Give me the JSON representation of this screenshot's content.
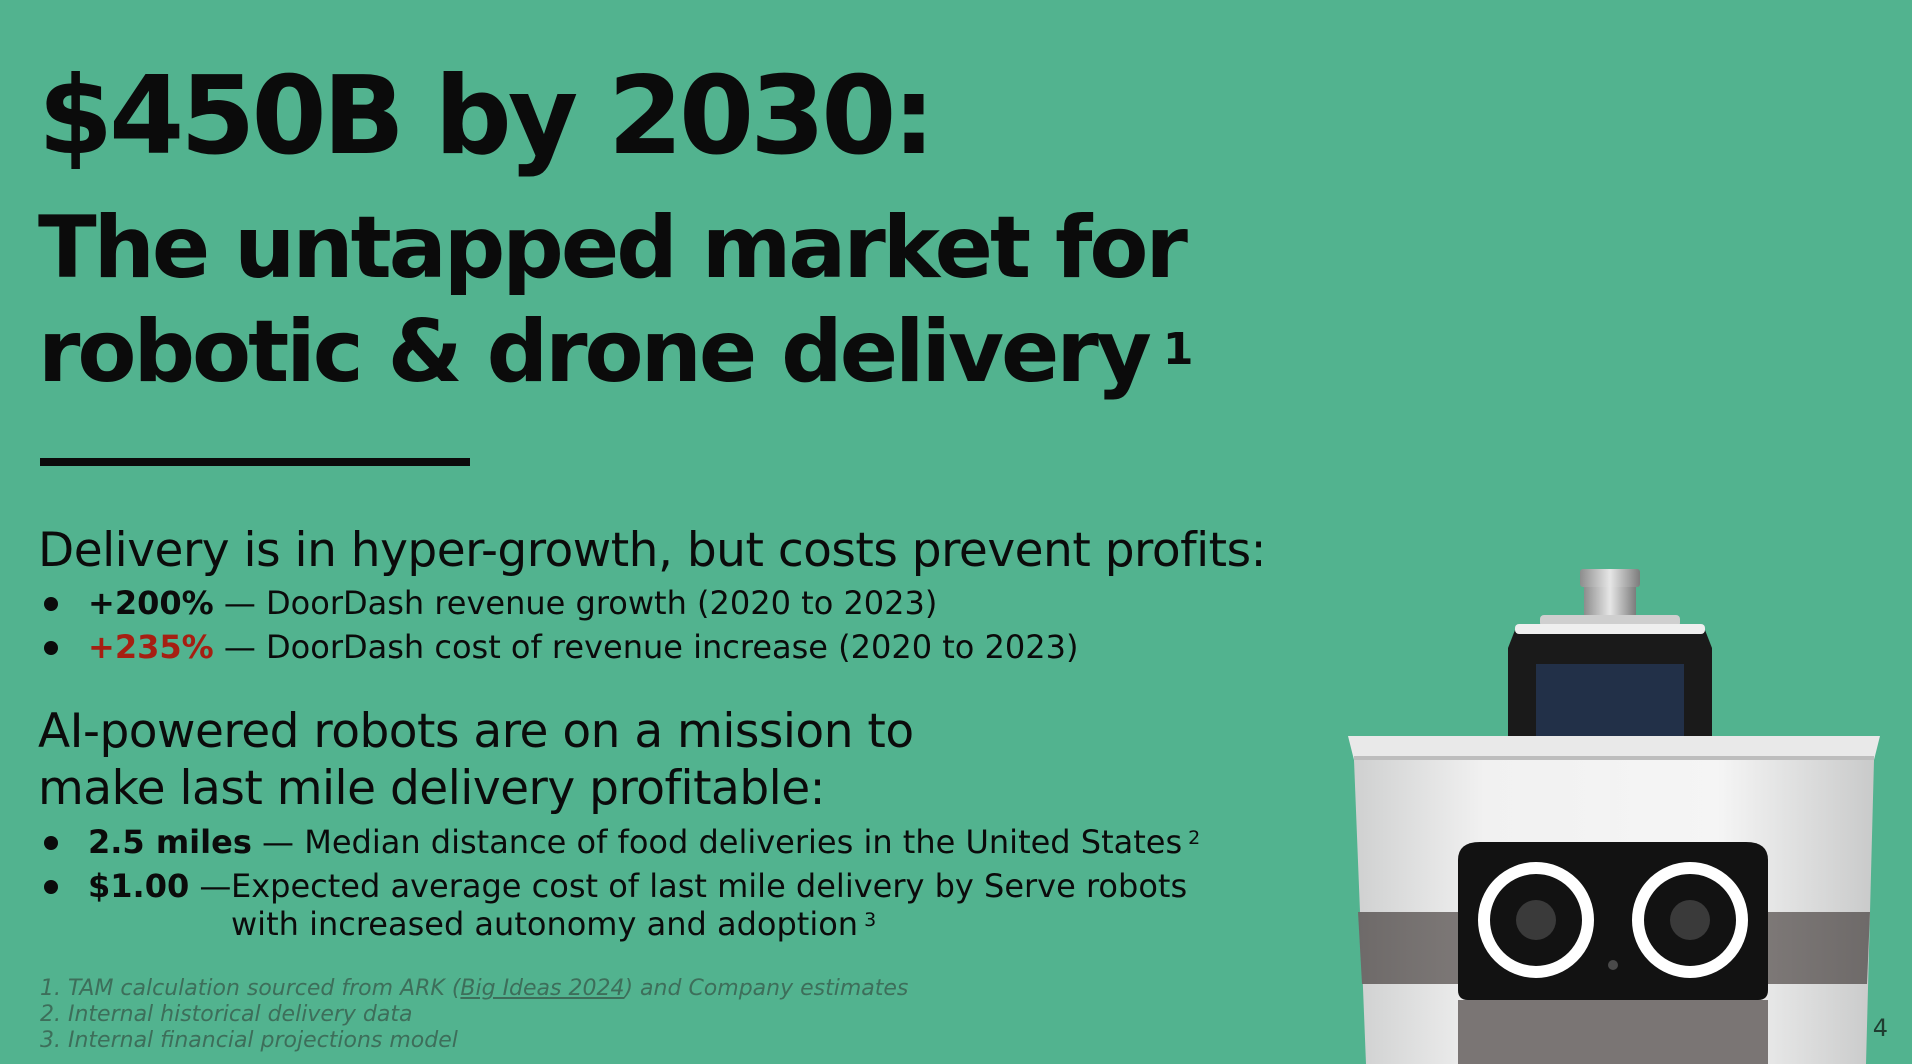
{
  "title": {
    "line1": "$450B by 2030:",
    "line2": "The untapped market for",
    "line3": "robotic & drone delivery",
    "footnote_mark": "1"
  },
  "section1": {
    "heading": "Delivery is in hyper-growth, but costs prevent profits:",
    "bullets": [
      {
        "value": "+200%",
        "text": " — DoorDash revenue growth (2020 to 2023)"
      },
      {
        "value": "+235%",
        "text": " — DoorDash cost of revenue increase (2020 to 2023)"
      }
    ]
  },
  "section2": {
    "heading_line1": "AI-powered robots are on a mission to",
    "heading_line2": "make last mile delivery profitable:",
    "bullets": [
      {
        "value": "2.5 miles",
        "text": " — Median distance of food deliveries in the United States",
        "footnote_mark": "2"
      },
      {
        "value": "$1.00",
        "dash": " — ",
        "text_line1": "Expected average cost of last mile delivery by Serve robots",
        "text_line2": "with increased autonomy and adoption",
        "footnote_mark": "3"
      }
    ]
  },
  "footnotes": [
    {
      "prefix": "1.  TAM calculation sourced from ARK (",
      "link": "Big Ideas 2024",
      "suffix": ") and Company estimates"
    },
    {
      "text": "2.  Internal historical delivery data"
    },
    {
      "text": "3.  Internal financial projections model"
    }
  ],
  "page_number": "4",
  "colors": {
    "background": "#52b38f",
    "text": "#0b0b0b",
    "accent_red": "#a61f12",
    "footnote": "#3d6e5a"
  },
  "image": {
    "icon": "delivery-robot-icon"
  }
}
